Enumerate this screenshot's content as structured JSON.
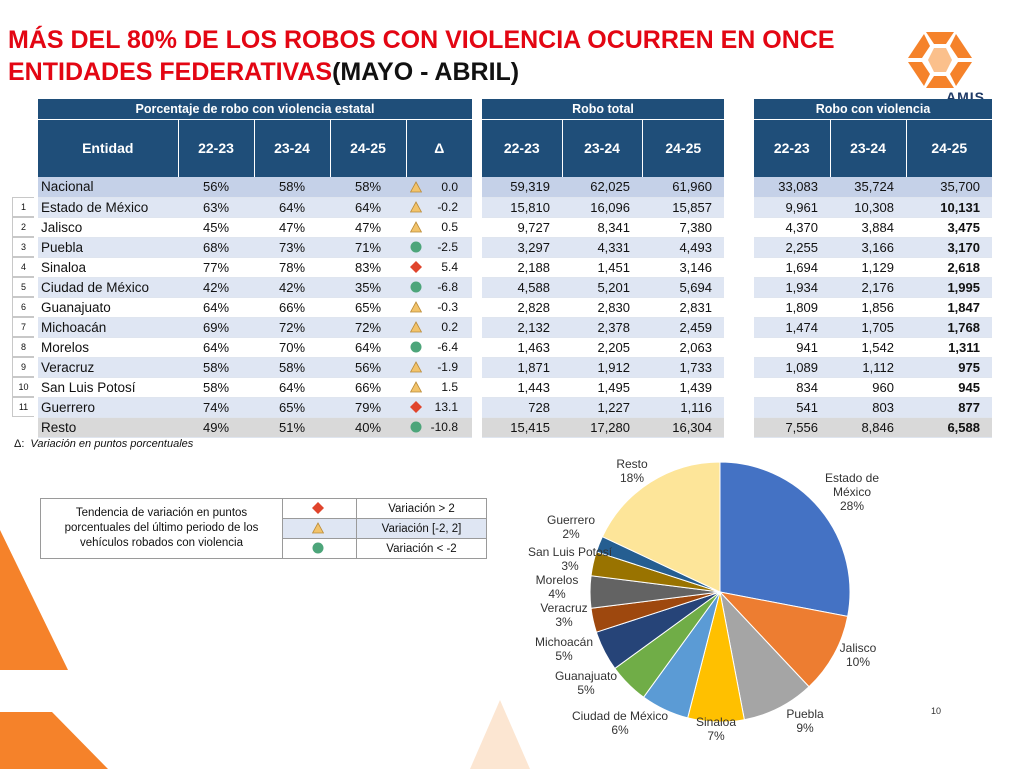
{
  "title": {
    "red": "MÁS DEL 80% DE LOS ROBOS CON VIOLENCIA OCURREN EN ONCE ENTIDADES FEDERATIVAS",
    "black": "(MAYO - ABRIL)"
  },
  "logo_text": "AMIS",
  "colors": {
    "header": "#1f4e79",
    "title_red": "#e30613",
    "accent_orange": "#f5822a",
    "up": "#e0442c",
    "stable": "#f2c36b",
    "down": "#4da57a"
  },
  "table_pct": {
    "title": "Porcentaje de robo con violencia estatal",
    "headers": [
      "Entidad",
      "22-23",
      "23-24",
      "24-25",
      "Δ"
    ],
    "rows": [
      {
        "rank": "",
        "entity": "Nacional",
        "p1": "56%",
        "p2": "58%",
        "p3": "58%",
        "delta": "0.0",
        "trend": "stable"
      },
      {
        "rank": "1",
        "entity": "Estado de México",
        "p1": "63%",
        "p2": "64%",
        "p3": "64%",
        "delta": "-0.2",
        "trend": "stable"
      },
      {
        "rank": "2",
        "entity": "Jalisco",
        "p1": "45%",
        "p2": "47%",
        "p3": "47%",
        "delta": "0.5",
        "trend": "stable"
      },
      {
        "rank": "3",
        "entity": "Puebla",
        "p1": "68%",
        "p2": "73%",
        "p3": "71%",
        "delta": "-2.5",
        "trend": "down"
      },
      {
        "rank": "4",
        "entity": "Sinaloa",
        "p1": "77%",
        "p2": "78%",
        "p3": "83%",
        "delta": "5.4",
        "trend": "up"
      },
      {
        "rank": "5",
        "entity": "Ciudad de México",
        "p1": "42%",
        "p2": "42%",
        "p3": "35%",
        "delta": "-6.8",
        "trend": "down"
      },
      {
        "rank": "6",
        "entity": "Guanajuato",
        "p1": "64%",
        "p2": "66%",
        "p3": "65%",
        "delta": "-0.3",
        "trend": "stable"
      },
      {
        "rank": "7",
        "entity": "Michoacán",
        "p1": "69%",
        "p2": "72%",
        "p3": "72%",
        "delta": "0.2",
        "trend": "stable"
      },
      {
        "rank": "8",
        "entity": "Morelos",
        "p1": "64%",
        "p2": "70%",
        "p3": "64%",
        "delta": "-6.4",
        "trend": "down"
      },
      {
        "rank": "9",
        "entity": "Veracruz",
        "p1": "58%",
        "p2": "58%",
        "p3": "56%",
        "delta": "-1.9",
        "trend": "stable"
      },
      {
        "rank": "10",
        "entity": "San Luis Potosí",
        "p1": "58%",
        "p2": "64%",
        "p3": "66%",
        "delta": "1.5",
        "trend": "stable"
      },
      {
        "rank": "11",
        "entity": "Guerrero",
        "p1": "74%",
        "p2": "65%",
        "p3": "79%",
        "delta": "13.1",
        "trend": "up"
      },
      {
        "rank": "",
        "entity": "Resto",
        "p1": "49%",
        "p2": "51%",
        "p3": "40%",
        "delta": "-10.8",
        "trend": "down"
      }
    ]
  },
  "table_total": {
    "title": "Robo total",
    "headers": [
      "22-23",
      "23-24",
      "24-25"
    ],
    "rows": [
      [
        "59,319",
        "62,025",
        "61,960"
      ],
      [
        "15,810",
        "16,096",
        "15,857"
      ],
      [
        "9,727",
        "8,341",
        "7,380"
      ],
      [
        "3,297",
        "4,331",
        "4,493"
      ],
      [
        "2,188",
        "1,451",
        "3,146"
      ],
      [
        "4,588",
        "5,201",
        "5,694"
      ],
      [
        "2,828",
        "2,830",
        "2,831"
      ],
      [
        "2,132",
        "2,378",
        "2,459"
      ],
      [
        "1,463",
        "2,205",
        "2,063"
      ],
      [
        "1,871",
        "1,912",
        "1,733"
      ],
      [
        "1,443",
        "1,495",
        "1,439"
      ],
      [
        "728",
        "1,227",
        "1,116"
      ],
      [
        "15,415",
        "17,280",
        "16,304"
      ]
    ]
  },
  "table_violent": {
    "title": "Robo con violencia",
    "headers": [
      "22-23",
      "23-24",
      "24-25"
    ],
    "rows": [
      [
        "33,083",
        "35,724",
        "35,700"
      ],
      [
        "9,961",
        "10,308",
        "10,131"
      ],
      [
        "4,370",
        "3,884",
        "3,475"
      ],
      [
        "2,255",
        "3,166",
        "3,170"
      ],
      [
        "1,694",
        "1,129",
        "2,618"
      ],
      [
        "1,934",
        "2,176",
        "1,995"
      ],
      [
        "1,809",
        "1,856",
        "1,847"
      ],
      [
        "1,474",
        "1,705",
        "1,768"
      ],
      [
        "941",
        "1,542",
        "1,311"
      ],
      [
        "1,089",
        "1,112",
        "975"
      ],
      [
        "834",
        "960",
        "945"
      ],
      [
        "541",
        "803",
        "877"
      ],
      [
        "7,556",
        "8,846",
        "6,588"
      ]
    ]
  },
  "note": {
    "symbol": "Δ:",
    "text": "Variación en puntos porcentuales"
  },
  "legend": {
    "description": "Tendencia de variación en puntos porcentuales del último periodo de los vehículos robados con violencia",
    "items": [
      {
        "trend": "up",
        "label": "Variación > 2"
      },
      {
        "trend": "stable",
        "label": "Variación [-2, 2]"
      },
      {
        "trend": "down",
        "label": "Variación < -2"
      }
    ]
  },
  "chart_data": {
    "type": "pie",
    "slices": [
      {
        "name": "Estado de México",
        "value": 28,
        "label": "28%",
        "color": "#4472c4"
      },
      {
        "name": "Jalisco",
        "value": 10,
        "label": "10%",
        "color": "#ed7d31"
      },
      {
        "name": "Puebla",
        "value": 9,
        "label": "9%",
        "color": "#a5a5a5"
      },
      {
        "name": "Sinaloa",
        "value": 7,
        "label": "7%",
        "color": "#ffc000"
      },
      {
        "name": "Ciudad de México",
        "value": 6,
        "label": "6%",
        "color": "#5b9bd5"
      },
      {
        "name": "Guanajuato",
        "value": 5,
        "label": "5%",
        "color": "#70ad47"
      },
      {
        "name": "Michoacán",
        "value": 5,
        "label": "5%",
        "color": "#264478"
      },
      {
        "name": "Veracruz",
        "value": 3,
        "label": "3%",
        "color": "#9e480e"
      },
      {
        "name": "Morelos",
        "value": 4,
        "label": "4%",
        "color": "#636363"
      },
      {
        "name": "San Luis Potosí",
        "value": 3,
        "label": "3%",
        "color": "#997300"
      },
      {
        "name": "Guerrero",
        "value": 2,
        "label": "2%",
        "color": "#255e91"
      },
      {
        "name": "Resto",
        "value": 18,
        "label": "18%",
        "color": "#fde599"
      }
    ]
  },
  "page_number": "10"
}
